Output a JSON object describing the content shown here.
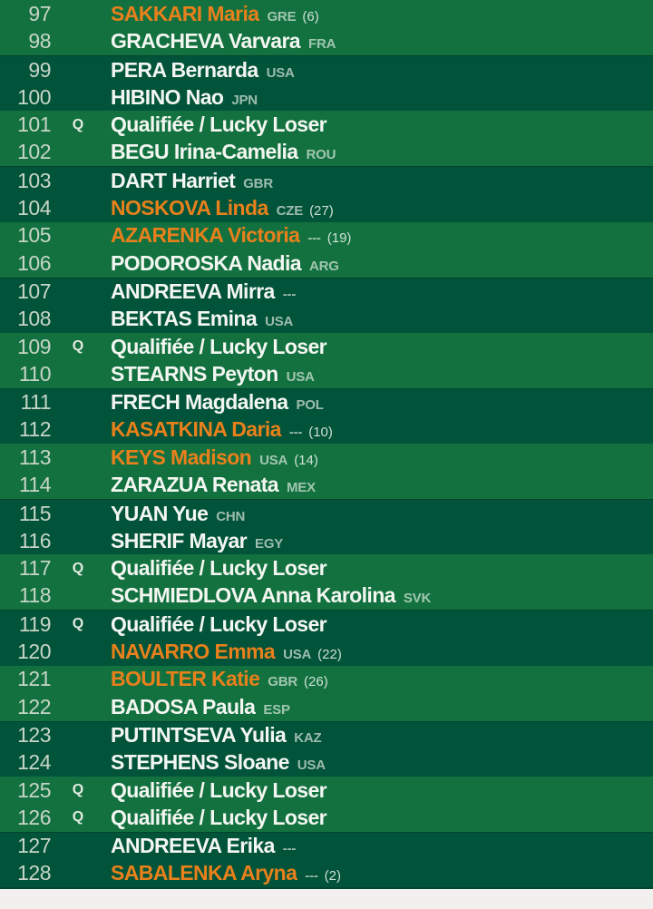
{
  "labels": {
    "qualifier_mark": "Q",
    "qualifier_row_text": "Qualifiée / Lucky Loser",
    "no_country_placeholder": "---"
  },
  "colors": {
    "band_light": "#12713F",
    "band_dark": "#015339",
    "seeded_name": "#E8801C",
    "name_text": "#F3F6F1",
    "muted_text": "#C7D5C6",
    "page_bottom": "#F1F0EE"
  },
  "rows": [
    {
      "num": "97",
      "q": false,
      "name": "SAKKARI Maria",
      "seeded": true,
      "country": "GRE",
      "seed": "(6)"
    },
    {
      "num": "98",
      "q": false,
      "name": "GRACHEVA Varvara",
      "seeded": false,
      "country": "FRA",
      "seed": ""
    },
    {
      "num": "99",
      "q": false,
      "name": "PERA Bernarda",
      "seeded": false,
      "country": "USA",
      "seed": ""
    },
    {
      "num": "100",
      "q": false,
      "name": "HIBINO Nao",
      "seeded": false,
      "country": "JPN",
      "seed": ""
    },
    {
      "num": "101",
      "q": true,
      "name": "Qualifiée / Lucky Loser",
      "seeded": false,
      "country": "",
      "seed": ""
    },
    {
      "num": "102",
      "q": false,
      "name": "BEGU Irina-Camelia",
      "seeded": false,
      "country": "ROU",
      "seed": ""
    },
    {
      "num": "103",
      "q": false,
      "name": "DART Harriet",
      "seeded": false,
      "country": "GBR",
      "seed": ""
    },
    {
      "num": "104",
      "q": false,
      "name": "NOSKOVA Linda",
      "seeded": true,
      "country": "CZE",
      "seed": "(27)"
    },
    {
      "num": "105",
      "q": false,
      "name": "AZARENKA Victoria",
      "seeded": true,
      "country": "---",
      "seed": "(19)"
    },
    {
      "num": "106",
      "q": false,
      "name": "PODOROSKA Nadia",
      "seeded": false,
      "country": "ARG",
      "seed": ""
    },
    {
      "num": "107",
      "q": false,
      "name": "ANDREEVA Mirra",
      "seeded": false,
      "country": "---",
      "seed": ""
    },
    {
      "num": "108",
      "q": false,
      "name": "BEKTAS Emina",
      "seeded": false,
      "country": "USA",
      "seed": ""
    },
    {
      "num": "109",
      "q": true,
      "name": "Qualifiée / Lucky Loser",
      "seeded": false,
      "country": "",
      "seed": ""
    },
    {
      "num": "110",
      "q": false,
      "name": "STEARNS Peyton",
      "seeded": false,
      "country": "USA",
      "seed": ""
    },
    {
      "num": "111",
      "q": false,
      "name": "FRECH Magdalena",
      "seeded": false,
      "country": "POL",
      "seed": ""
    },
    {
      "num": "112",
      "q": false,
      "name": "KASATKINA Daria",
      "seeded": true,
      "country": "---",
      "seed": "(10)"
    },
    {
      "num": "113",
      "q": false,
      "name": "KEYS Madison",
      "seeded": true,
      "country": "USA",
      "seed": "(14)"
    },
    {
      "num": "114",
      "q": false,
      "name": "ZARAZUA Renata",
      "seeded": false,
      "country": "MEX",
      "seed": ""
    },
    {
      "num": "115",
      "q": false,
      "name": "YUAN Yue",
      "seeded": false,
      "country": "CHN",
      "seed": ""
    },
    {
      "num": "116",
      "q": false,
      "name": "SHERIF Mayar",
      "seeded": false,
      "country": "EGY",
      "seed": ""
    },
    {
      "num": "117",
      "q": true,
      "name": "Qualifiée / Lucky Loser",
      "seeded": false,
      "country": "",
      "seed": ""
    },
    {
      "num": "118",
      "q": false,
      "name": "SCHMIEDLOVA Anna Karolina",
      "seeded": false,
      "country": "SVK",
      "seed": ""
    },
    {
      "num": "119",
      "q": true,
      "name": "Qualifiée / Lucky Loser",
      "seeded": false,
      "country": "",
      "seed": ""
    },
    {
      "num": "120",
      "q": false,
      "name": "NAVARRO Emma",
      "seeded": true,
      "country": "USA",
      "seed": "(22)"
    },
    {
      "num": "121",
      "q": false,
      "name": "BOULTER Katie",
      "seeded": true,
      "country": "GBR",
      "seed": "(26)"
    },
    {
      "num": "122",
      "q": false,
      "name": "BADOSA Paula",
      "seeded": false,
      "country": "ESP",
      "seed": ""
    },
    {
      "num": "123",
      "q": false,
      "name": "PUTINTSEVA Yulia",
      "seeded": false,
      "country": "KAZ",
      "seed": ""
    },
    {
      "num": "124",
      "q": false,
      "name": "STEPHENS Sloane",
      "seeded": false,
      "country": "USA",
      "seed": ""
    },
    {
      "num": "125",
      "q": true,
      "name": "Qualifiée / Lucky Loser",
      "seeded": false,
      "country": "",
      "seed": ""
    },
    {
      "num": "126",
      "q": true,
      "name": "Qualifiée / Lucky Loser",
      "seeded": false,
      "country": "",
      "seed": ""
    },
    {
      "num": "127",
      "q": false,
      "name": "ANDREEVA Erika",
      "seeded": false,
      "country": "---",
      "seed": ""
    },
    {
      "num": "128",
      "q": false,
      "name": "SABALENKA Aryna",
      "seeded": true,
      "country": "---",
      "seed": "(2)"
    }
  ]
}
